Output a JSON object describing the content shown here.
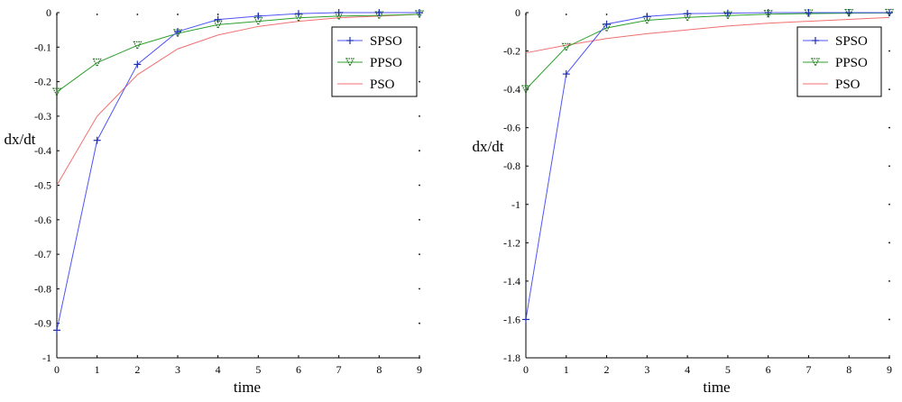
{
  "colors": {
    "SPSO": "#4f55f5",
    "PPSO": "#2ca02c",
    "PSO": "#f07070",
    "SPSO_marker": "#1f2fb0",
    "PPSO_marker": "#1b6e1b",
    "axis": "#000000",
    "background": "#ffffff"
  },
  "chart_data": [
    {
      "type": "line",
      "title": "",
      "xlabel": "time",
      "ylabel": "dx/dt",
      "xlim": [
        0,
        9
      ],
      "ylim": [
        -1,
        0
      ],
      "xticks": [
        "0",
        "1",
        "2",
        "3",
        "4",
        "5",
        "6",
        "7",
        "8",
        "9"
      ],
      "yticks": [
        "0",
        "-0.1",
        "-0.2",
        "-0.3",
        "-0.4",
        "-0.5",
        "-0.6",
        "-0.7",
        "-0.8",
        "-0.9",
        "-1"
      ],
      "grid": false,
      "legend": "top-right",
      "x": [
        0,
        1,
        2,
        3,
        4,
        5,
        6,
        7,
        8,
        9
      ],
      "series": [
        {
          "name": "SPSO",
          "marker": "+",
          "values": [
            -0.92,
            -0.37,
            -0.15,
            -0.055,
            -0.02,
            -0.01,
            -0.003,
            0,
            0,
            0
          ]
        },
        {
          "name": "PPSO",
          "marker": "triangle",
          "values": [
            -0.23,
            -0.145,
            -0.095,
            -0.06,
            -0.035,
            -0.025,
            -0.015,
            -0.01,
            -0.008,
            -0.005
          ]
        },
        {
          "name": "PSO",
          "marker": "none",
          "values": [
            -0.5,
            -0.3,
            -0.18,
            -0.105,
            -0.065,
            -0.04,
            -0.025,
            -0.015,
            -0.01,
            -0.005
          ]
        }
      ]
    },
    {
      "type": "line",
      "title": "",
      "xlabel": "time",
      "ylabel": "dx/dt",
      "xlim": [
        0,
        9
      ],
      "ylim": [
        -1.8,
        0
      ],
      "xticks": [
        "0",
        "1",
        "2",
        "3",
        "4",
        "5",
        "6",
        "7",
        "8",
        "9"
      ],
      "yticks": [
        "0",
        "-0.2",
        "-0.4",
        "-0.6",
        "-0.8",
        "-1",
        "-1.2",
        "-1.4",
        "-1.6",
        "-1.8"
      ],
      "grid": false,
      "legend": "top-right",
      "x": [
        0,
        1,
        2,
        3,
        4,
        5,
        6,
        7,
        8,
        9
      ],
      "series": [
        {
          "name": "SPSO",
          "marker": "+",
          "values": [
            -1.6,
            -0.32,
            -0.06,
            -0.02,
            -0.005,
            -0.003,
            0,
            0,
            0,
            0
          ]
        },
        {
          "name": "PPSO",
          "marker": "triangle",
          "values": [
            -0.4,
            -0.18,
            -0.08,
            -0.04,
            -0.025,
            -0.015,
            -0.008,
            -0.005,
            -0.003,
            -0.002
          ]
        },
        {
          "name": "PSO",
          "marker": "none",
          "values": [
            -0.21,
            -0.17,
            -0.135,
            -0.11,
            -0.09,
            -0.07,
            -0.055,
            -0.045,
            -0.035,
            -0.025
          ]
        }
      ]
    }
  ]
}
